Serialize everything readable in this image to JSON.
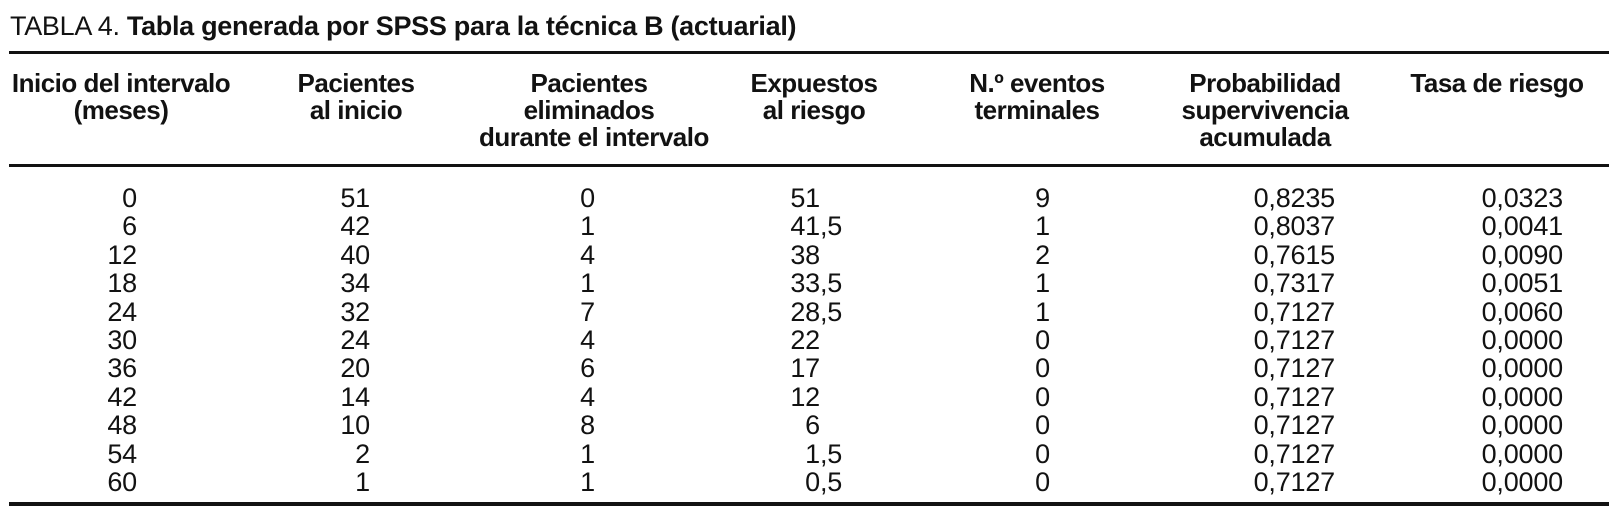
{
  "colors": {
    "background": "#ffffff",
    "text": "#121212",
    "rule": "#121212"
  },
  "title": {
    "label": "TABLA 4. ",
    "text": "Tabla generada por SPSS para la técnica B (actuarial)"
  },
  "table": {
    "columns": [
      {
        "id": "inicio",
        "label": "Inicio del intervalo\n(meses)"
      },
      {
        "id": "pacientes_inicio",
        "label": "Pacientes\nal inicio"
      },
      {
        "id": "eliminados",
        "label": "Pacientes\neliminados\ndurante el intervalo"
      },
      {
        "id": "expuestos",
        "label": "Expuestos\nal riesgo"
      },
      {
        "id": "eventos",
        "label": "N.º eventos\nterminales"
      },
      {
        "id": "probabilidad",
        "label": "Probabilidad\nsupervivencia\nacumulada"
      },
      {
        "id": "tasa",
        "label": "Tasa de riesgo"
      }
    ],
    "rows": [
      {
        "inicio": "0",
        "pacientes_inicio": "51",
        "eliminados": "0",
        "expuestos_int": "51",
        "expuestos_dec": "",
        "eventos": "9",
        "probabilidad": "0,8235",
        "tasa": "0,0323"
      },
      {
        "inicio": "6",
        "pacientes_inicio": "42",
        "eliminados": "1",
        "expuestos_int": "41",
        "expuestos_dec": ",5",
        "eventos": "1",
        "probabilidad": "0,8037",
        "tasa": "0,0041"
      },
      {
        "inicio": "12",
        "pacientes_inicio": "40",
        "eliminados": "4",
        "expuestos_int": "38",
        "expuestos_dec": "",
        "eventos": "2",
        "probabilidad": "0,7615",
        "tasa": "0,0090"
      },
      {
        "inicio": "18",
        "pacientes_inicio": "34",
        "eliminados": "1",
        "expuestos_int": "33",
        "expuestos_dec": ",5",
        "eventos": "1",
        "probabilidad": "0,7317",
        "tasa": "0,0051"
      },
      {
        "inicio": "24",
        "pacientes_inicio": "32",
        "eliminados": "7",
        "expuestos_int": "28",
        "expuestos_dec": ",5",
        "eventos": "1",
        "probabilidad": "0,7127",
        "tasa": "0,0060"
      },
      {
        "inicio": "30",
        "pacientes_inicio": "24",
        "eliminados": "4",
        "expuestos_int": "22",
        "expuestos_dec": "",
        "eventos": "0",
        "probabilidad": "0,7127",
        "tasa": "0,0000"
      },
      {
        "inicio": "36",
        "pacientes_inicio": "20",
        "eliminados": "6",
        "expuestos_int": "17",
        "expuestos_dec": "",
        "eventos": "0",
        "probabilidad": "0,7127",
        "tasa": "0,0000"
      },
      {
        "inicio": "42",
        "pacientes_inicio": "14",
        "eliminados": "4",
        "expuestos_int": "12",
        "expuestos_dec": "",
        "eventos": "0",
        "probabilidad": "0,7127",
        "tasa": "0,0000"
      },
      {
        "inicio": "48",
        "pacientes_inicio": "10",
        "eliminados": "8",
        "expuestos_int": "6",
        "expuestos_dec": "",
        "eventos": "0",
        "probabilidad": "0,7127",
        "tasa": "0,0000"
      },
      {
        "inicio": "54",
        "pacientes_inicio": "2",
        "eliminados": "1",
        "expuestos_int": "1",
        "expuestos_dec": ",5",
        "eventos": "0",
        "probabilidad": "0,7127",
        "tasa": "0,0000"
      },
      {
        "inicio": "60",
        "pacientes_inicio": "1",
        "eliminados": "1",
        "expuestos_int": "0",
        "expuestos_dec": ",5",
        "eventos": "0",
        "probabilidad": "0,7127",
        "tasa": "0,0000"
      }
    ]
  }
}
